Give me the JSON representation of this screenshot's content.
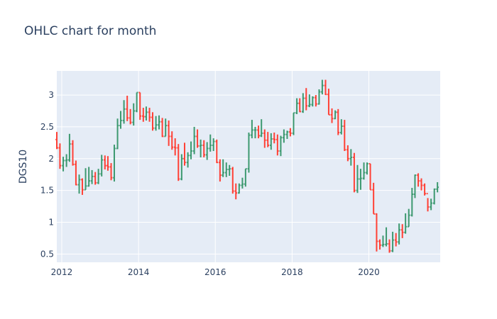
{
  "chart_data": {
    "type": "ohlc",
    "title": "OHLC chart for month",
    "xlabel": "",
    "ylabel": "DGS10",
    "xlim": [
      "2011-11-15",
      "2021-11-10"
    ],
    "ylim": [
      0.37,
      3.38
    ],
    "x_ticks": [
      {
        "value": "2012-01-01",
        "label": "2012"
      },
      {
        "value": "2014-01-01",
        "label": "2014"
      },
      {
        "value": "2016-01-01",
        "label": "2016"
      },
      {
        "value": "2018-01-01",
        "label": "2018"
      },
      {
        "value": "2020-01-01",
        "label": "2020"
      }
    ],
    "y_ticks": [
      0.5,
      1,
      1.5,
      2,
      2.5,
      3
    ],
    "grid": true,
    "colors": {
      "increasing": "#3d9970",
      "decreasing": "#ff4136",
      "plot_bg": "#e5ecf6",
      "grid": "#ffffff"
    },
    "months": [
      "2011-11",
      "2011-12",
      "2012-01",
      "2012-02",
      "2012-03",
      "2012-04",
      "2012-05",
      "2012-06",
      "2012-07",
      "2012-08",
      "2012-09",
      "2012-10",
      "2012-11",
      "2012-12",
      "2013-01",
      "2013-02",
      "2013-03",
      "2013-04",
      "2013-05",
      "2013-06",
      "2013-07",
      "2013-08",
      "2013-09",
      "2013-10",
      "2013-11",
      "2013-12",
      "2014-01",
      "2014-02",
      "2014-03",
      "2014-04",
      "2014-05",
      "2014-06",
      "2014-07",
      "2014-08",
      "2014-09",
      "2014-10",
      "2014-11",
      "2014-12",
      "2015-01",
      "2015-02",
      "2015-03",
      "2015-04",
      "2015-05",
      "2015-06",
      "2015-07",
      "2015-08",
      "2015-09",
      "2015-10",
      "2015-11",
      "2015-12",
      "2016-01",
      "2016-02",
      "2016-03",
      "2016-04",
      "2016-05",
      "2016-06",
      "2016-07",
      "2016-08",
      "2016-09",
      "2016-10",
      "2016-11",
      "2016-12",
      "2017-01",
      "2017-02",
      "2017-03",
      "2017-04",
      "2017-05",
      "2017-06",
      "2017-07",
      "2017-08",
      "2017-09",
      "2017-10",
      "2017-11",
      "2017-12",
      "2018-01",
      "2018-02",
      "2018-03",
      "2018-04",
      "2018-05",
      "2018-06",
      "2018-07",
      "2018-08",
      "2018-09",
      "2018-10",
      "2018-11",
      "2018-12",
      "2019-01",
      "2019-02",
      "2019-03",
      "2019-04",
      "2019-05",
      "2019-06",
      "2019-07",
      "2019-08",
      "2019-09",
      "2019-10",
      "2019-11",
      "2019-12",
      "2020-01",
      "2020-02",
      "2020-03",
      "2020-04",
      "2020-05",
      "2020-06",
      "2020-07",
      "2020-08",
      "2020-09",
      "2020-10",
      "2020-11",
      "2020-12",
      "2021-01",
      "2021-02",
      "2021-03",
      "2021-04",
      "2021-05",
      "2021-06",
      "2021-07",
      "2021-08",
      "2021-09",
      "2021-10"
    ],
    "closes": [
      2.17,
      1.89,
      1.97,
      1.98,
      2.23,
      1.91,
      1.59,
      1.67,
      1.51,
      1.57,
      1.65,
      1.72,
      1.62,
      1.76,
      1.98,
      1.89,
      1.87,
      1.7,
      2.16,
      2.52,
      2.6,
      2.78,
      2.64,
      2.57,
      2.75,
      3.04,
      2.67,
      2.66,
      2.73,
      2.65,
      2.48,
      2.53,
      2.58,
      2.35,
      2.52,
      2.35,
      2.18,
      2.17,
      1.68,
      2.0,
      1.94,
      2.05,
      2.12,
      2.35,
      2.2,
      2.21,
      2.06,
      2.16,
      2.21,
      2.27,
      1.94,
      1.74,
      1.78,
      1.83,
      1.84,
      1.49,
      1.46,
      1.58,
      1.6,
      1.84,
      2.37,
      2.45,
      2.45,
      2.36,
      2.4,
      2.29,
      2.21,
      2.31,
      2.3,
      2.12,
      2.33,
      2.38,
      2.42,
      2.4,
      2.72,
      2.87,
      2.74,
      2.95,
      2.83,
      2.85,
      2.96,
      2.86,
      3.05,
      3.15,
      3.01,
      2.69,
      2.63,
      2.73,
      2.41,
      2.51,
      2.14,
      2.0,
      2.02,
      1.5,
      1.68,
      1.69,
      1.78,
      1.92,
      1.51,
      1.13,
      0.7,
      0.64,
      0.65,
      0.66,
      0.55,
      0.72,
      0.69,
      0.88,
      0.84,
      0.93,
      1.11,
      1.44,
      1.74,
      1.65,
      1.58,
      1.45,
      1.24,
      1.3,
      1.52,
      1.55
    ],
    "series": [
      {
        "name": "open",
        "values": [
          2.3,
          2.17,
          1.89,
          1.97,
          1.98,
          2.23,
          1.91,
          1.59,
          1.67,
          1.51,
          1.57,
          1.65,
          1.72,
          1.62,
          1.76,
          1.98,
          1.89,
          1.87,
          1.7,
          2.16,
          2.52,
          2.6,
          2.78,
          2.64,
          2.57,
          2.75,
          3.04,
          2.67,
          2.66,
          2.73,
          2.65,
          2.48,
          2.53,
          2.58,
          2.35,
          2.52,
          2.35,
          2.18,
          2.17,
          1.68,
          2.0,
          1.94,
          2.05,
          2.12,
          2.35,
          2.2,
          2.21,
          2.06,
          2.16,
          2.21,
          2.27,
          1.94,
          1.74,
          1.78,
          1.83,
          1.84,
          1.49,
          1.46,
          1.58,
          1.6,
          1.84,
          2.37,
          2.45,
          2.45,
          2.36,
          2.4,
          2.29,
          2.21,
          2.31,
          2.3,
          2.12,
          2.33,
          2.38,
          2.42,
          2.4,
          2.72,
          2.87,
          2.74,
          2.95,
          2.83,
          2.85,
          2.96,
          2.86,
          3.05,
          3.15,
          3.01,
          2.69,
          2.63,
          2.73,
          2.41,
          2.51,
          2.14,
          2.0,
          2.02,
          1.5,
          1.68,
          1.69,
          1.78,
          1.92,
          1.51,
          1.13,
          0.7,
          0.64,
          0.65,
          0.66,
          0.55,
          0.72,
          0.69,
          0.88,
          0.84,
          0.93,
          1.11,
          1.44,
          1.74,
          1.65,
          1.58,
          1.45,
          1.24,
          1.3,
          1.52
        ]
      },
      {
        "name": "high",
        "values": [
          2.42,
          2.24,
          2.03,
          2.07,
          2.39,
          2.29,
          1.97,
          1.75,
          1.69,
          1.85,
          1.87,
          1.82,
          1.79,
          1.84,
          2.06,
          2.05,
          2.04,
          1.93,
          2.22,
          2.63,
          2.75,
          2.92,
          2.99,
          2.78,
          2.87,
          3.04,
          3.04,
          2.8,
          2.82,
          2.8,
          2.73,
          2.67,
          2.68,
          2.64,
          2.63,
          2.6,
          2.43,
          2.32,
          2.23,
          2.07,
          2.25,
          2.1,
          2.27,
          2.5,
          2.46,
          2.3,
          2.29,
          2.26,
          2.38,
          2.32,
          2.3,
          1.99,
          1.99,
          1.94,
          1.9,
          1.87,
          1.61,
          1.61,
          1.7,
          1.84,
          2.41,
          2.61,
          2.5,
          2.52,
          2.62,
          2.46,
          2.42,
          2.4,
          2.41,
          2.38,
          2.36,
          2.46,
          2.44,
          2.48,
          2.72,
          2.95,
          2.95,
          3.03,
          3.11,
          3.01,
          2.98,
          3.0,
          3.09,
          3.24,
          3.24,
          3.1,
          2.79,
          2.76,
          2.78,
          2.62,
          2.61,
          2.21,
          2.15,
          2.09,
          1.9,
          1.84,
          1.94,
          1.94,
          1.92,
          1.62,
          1.14,
          0.73,
          0.79,
          0.92,
          0.73,
          0.85,
          0.83,
          0.98,
          0.97,
          1.14,
          1.21,
          1.54,
          1.75,
          1.77,
          1.69,
          1.61,
          1.38,
          1.37,
          1.53,
          1.63
        ]
      },
      {
        "name": "low",
        "values": [
          2.15,
          1.84,
          1.8,
          1.87,
          1.95,
          1.89,
          1.58,
          1.45,
          1.43,
          1.51,
          1.56,
          1.6,
          1.59,
          1.6,
          1.72,
          1.83,
          1.81,
          1.66,
          1.64,
          2.15,
          2.47,
          2.55,
          2.59,
          2.54,
          2.52,
          2.73,
          2.61,
          2.58,
          2.6,
          2.58,
          2.44,
          2.44,
          2.46,
          2.34,
          2.35,
          2.2,
          2.14,
          2.05,
          1.65,
          1.66,
          1.89,
          1.86,
          1.99,
          2.07,
          2.17,
          2.02,
          2.02,
          1.98,
          2.11,
          2.12,
          1.93,
          1.64,
          1.71,
          1.71,
          1.73,
          1.45,
          1.36,
          1.45,
          1.53,
          1.56,
          1.78,
          2.32,
          2.32,
          2.32,
          2.34,
          2.17,
          2.18,
          2.14,
          2.24,
          2.05,
          2.04,
          2.25,
          2.31,
          2.35,
          2.37,
          2.7,
          2.73,
          2.72,
          2.76,
          2.81,
          2.82,
          2.82,
          2.85,
          3.01,
          3.0,
          2.69,
          2.56,
          2.62,
          2.37,
          2.38,
          2.12,
          1.96,
          1.89,
          1.47,
          1.46,
          1.51,
          1.67,
          1.75,
          1.51,
          1.13,
          0.54,
          0.57,
          0.61,
          0.62,
          0.52,
          0.53,
          0.62,
          0.65,
          0.75,
          0.82,
          0.93,
          1.09,
          1.38,
          1.56,
          1.5,
          1.42,
          1.17,
          1.19,
          1.28,
          1.47
        ]
      }
    ]
  }
}
